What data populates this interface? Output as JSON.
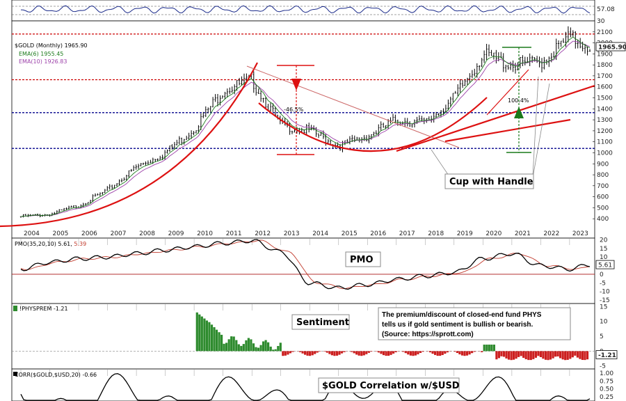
{
  "chart_data": [
    {
      "type": "line",
      "panel": "rsi",
      "y_tick_labels": [
        "57.08"
      ],
      "ylim": [
        0,
        100
      ],
      "last_value_label": "57.08"
    },
    {
      "type": "candlestick",
      "panel": "price",
      "title": "$GOLD (Monthly) 1965.90",
      "legend": [
        {
          "name": "EMA(6) 1955.45",
          "color": "#1a7a1a"
        },
        {
          "name": "EMA(10) 1926.83",
          "color": "#9b3fa8"
        }
      ],
      "x_tick_labels": [
        "2004",
        "2005",
        "2006",
        "2007",
        "2008",
        "2009",
        "2010",
        "2011",
        "2012",
        "2013",
        "2014",
        "2015",
        "2016",
        "2017",
        "2018",
        "2019",
        "2020",
        "2021",
        "2022",
        "2023"
      ],
      "x": [
        2004,
        2005,
        2006,
        2007,
        2008,
        2009,
        2010,
        2011,
        2012,
        2013,
        2014,
        2015,
        2016,
        2017,
        2018,
        2019,
        2020,
        2021,
        2022,
        2023,
        2023.7
      ],
      "close": [
        420,
        440,
        520,
        660,
        870,
        1000,
        1220,
        1570,
        1660,
        1250,
        1200,
        1060,
        1150,
        1300,
        1270,
        1500,
        1890,
        1800,
        1820,
        2050,
        1965.9
      ],
      "ylim": [
        300,
        2200
      ],
      "y_ticks": [
        400,
        500,
        600,
        700,
        800,
        900,
        1000,
        1100,
        1200,
        1300,
        1400,
        1500,
        1600,
        1700,
        1800,
        1900,
        2000,
        2100
      ],
      "last_price_label": "1965.90",
      "horizontal_levels": [
        {
          "value": 2080,
          "color": "#cc0000",
          "style": "dotted"
        },
        {
          "value": 1665,
          "color": "#cc0000",
          "style": "dotted"
        },
        {
          "value": 1365,
          "color": "#00008b",
          "style": "dotted"
        },
        {
          "value": 1040,
          "color": "#00008b",
          "style": "dotted"
        }
      ],
      "annotations": [
        {
          "text": "-46.5%"
        },
        {
          "text": "100.4%"
        },
        {
          "text": "Cup with Handle"
        }
      ],
      "top_left_labels": [
        "30"
      ]
    },
    {
      "type": "line",
      "panel": "pmo",
      "title": "PMO(35,20,10) 5.61, 5.39",
      "title_parts": [
        "PMO(35,20,10) 5.61,",
        "5.39"
      ],
      "y_ticks": [
        -15,
        -10,
        -5,
        0,
        5,
        10,
        15,
        20
      ],
      "ylim": [
        -17,
        21
      ],
      "last_value_label": "5.61",
      "box_label": "PMO"
    },
    {
      "type": "bar",
      "panel": "sentiment",
      "title": "!PHYSPREM -1.21",
      "y_ticks": [
        -5,
        0,
        5,
        10,
        15
      ],
      "ylim": [
        -6,
        16
      ],
      "last_value_label": "-1.21",
      "box_label": "Sentiment",
      "note": [
        "The premium/discount of closed-end fund PHYS",
        "tells us if gold sentiment is bullish or bearish.",
        "(Source: https://sprott.com)"
      ]
    },
    {
      "type": "line",
      "panel": "correlation",
      "title": "CORR($GOLD,$USD,20) -0.66",
      "y_ticks": [
        1.0,
        0.75,
        0.5,
        0.25
      ],
      "y_tick_labels": [
        "1.00",
        "0.75",
        "0.50",
        "0.25"
      ],
      "ylim": [
        -1,
        1.1
      ],
      "box_label": "$GOLD Correlation w/$USD"
    }
  ]
}
